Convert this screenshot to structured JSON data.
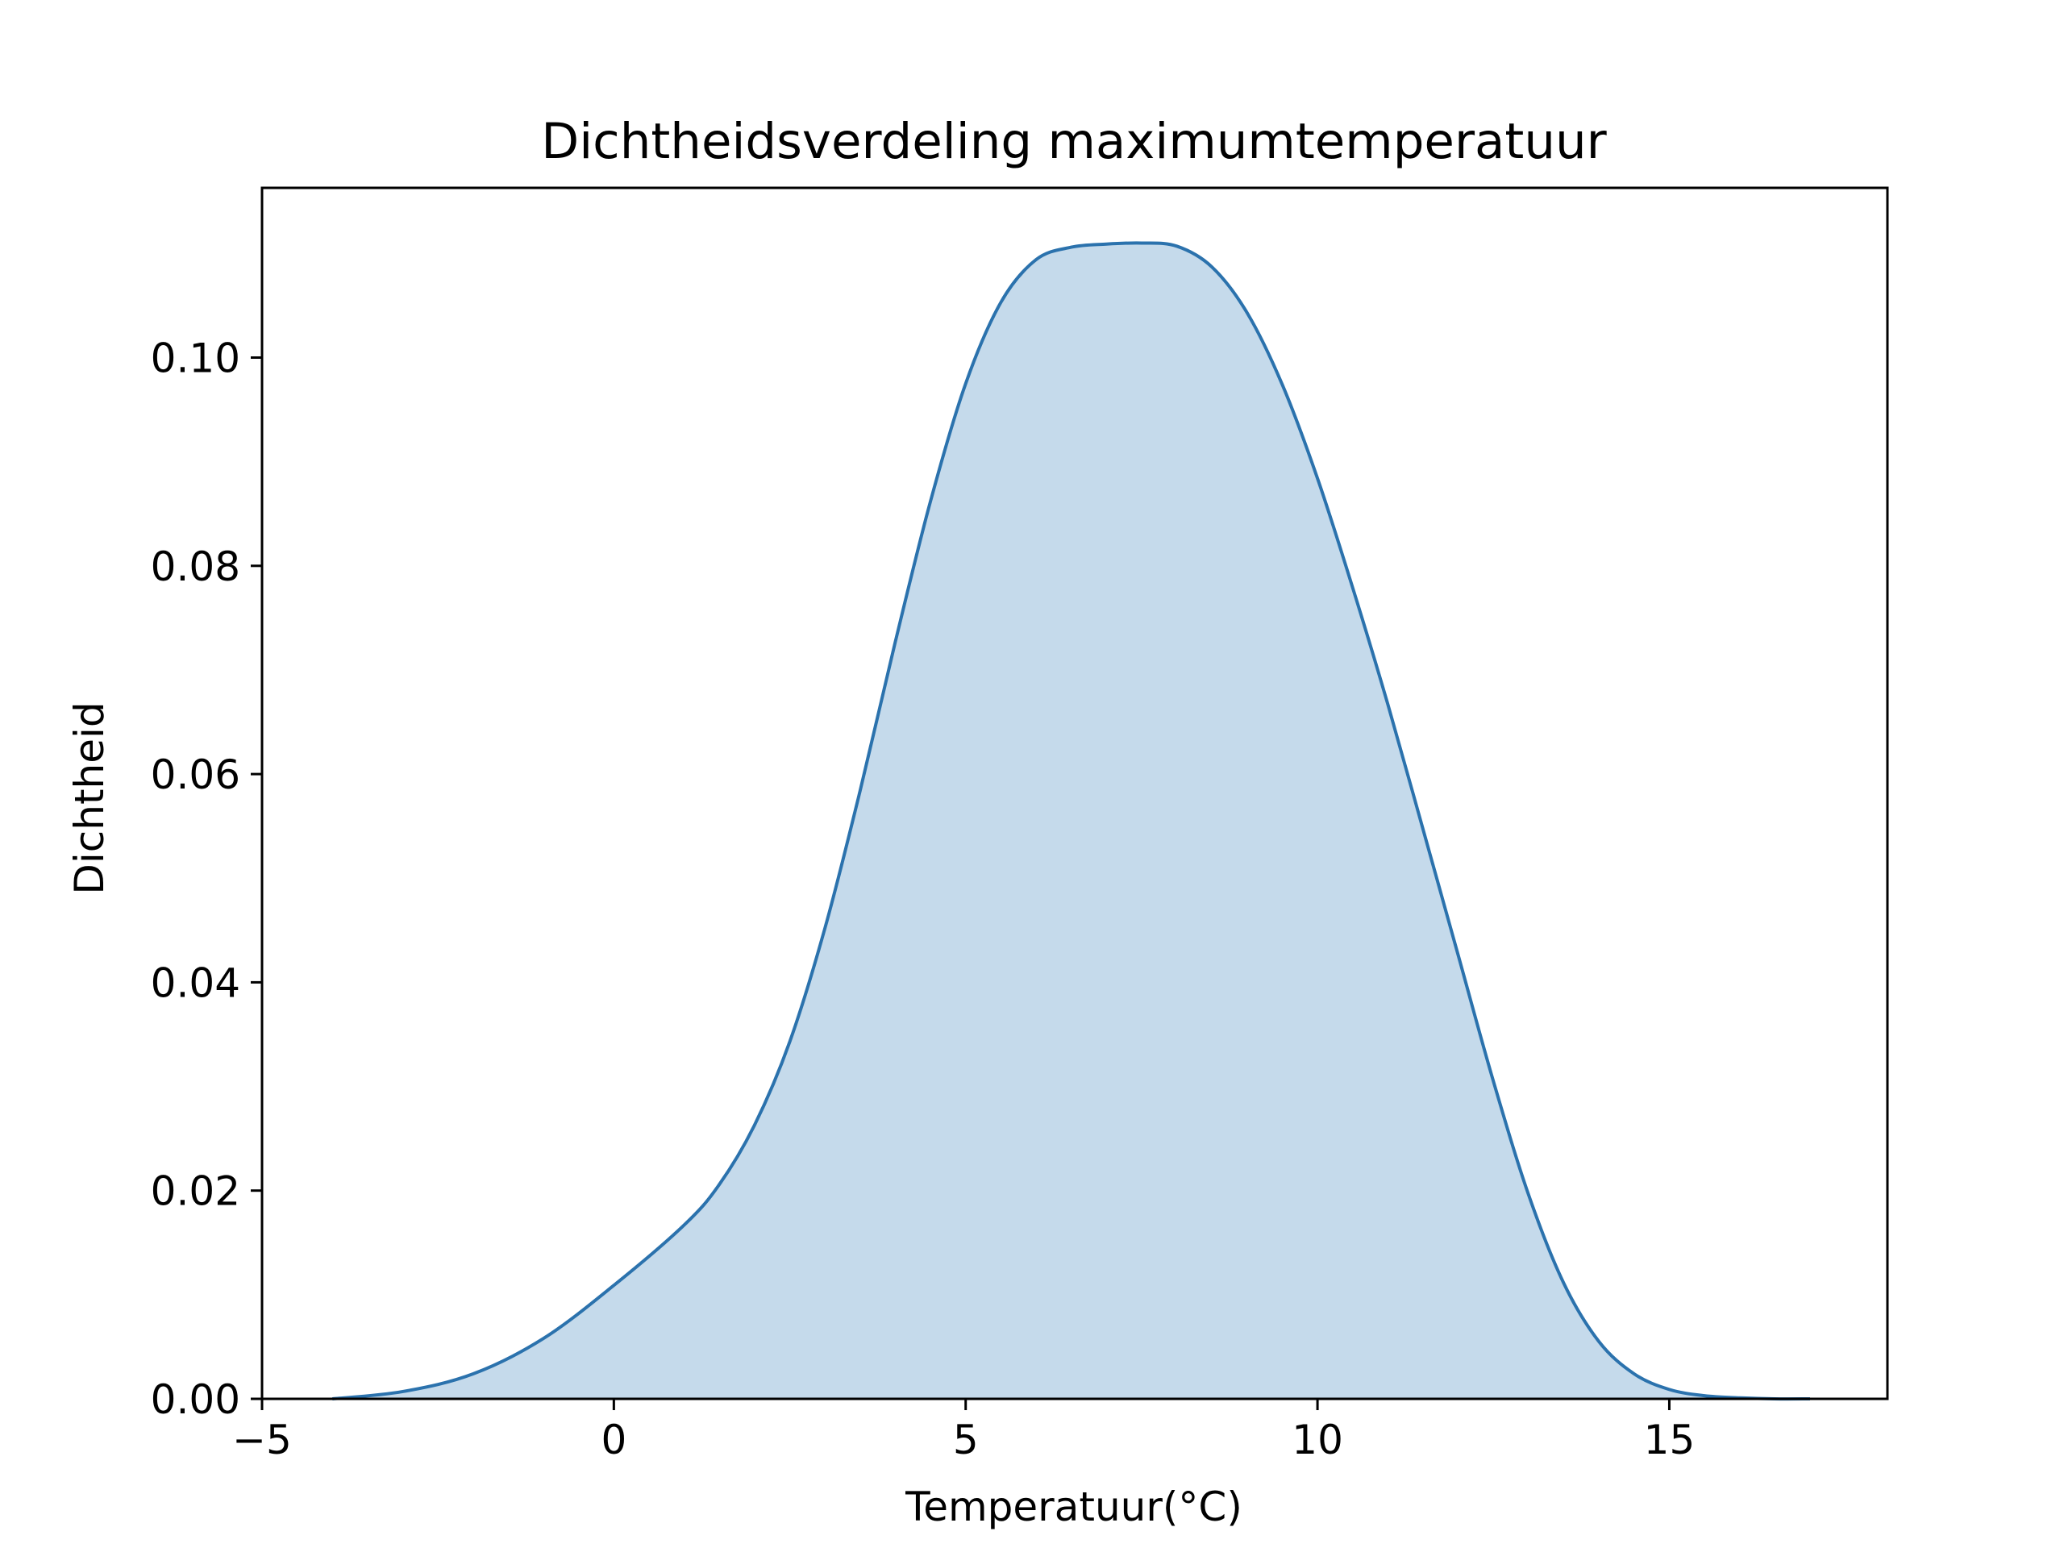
{
  "chart_data": {
    "type": "area",
    "title": "Dichtheidsverdeling maximumtemperatuur",
    "xlabel": "Temperatuur(°C)",
    "ylabel": "Dichtheid",
    "xlim": [
      -5,
      18.1
    ],
    "ylim": [
      0,
      0.1163
    ],
    "xticks": [
      -5,
      0,
      5,
      10,
      15
    ],
    "xtick_labels": [
      "−5",
      "0",
      "5",
      "10",
      "15"
    ],
    "yticks": [
      0,
      0.02,
      0.04,
      0.06,
      0.08,
      0.1
    ],
    "ytick_labels": [
      "0.00",
      "0.02",
      "0.04",
      "0.06",
      "0.08",
      "0.10"
    ],
    "grid": false,
    "line_color": "#2b72ad",
    "fill_color": "#c5daeb",
    "series": [
      {
        "x": [
          -4.0,
          -3.0,
          -2.0,
          -1.0,
          0.0,
          1.0,
          1.5,
          2.0,
          2.5,
          3.0,
          3.5,
          4.0,
          4.5,
          5.0,
          5.5,
          6.0,
          6.5,
          7.0,
          7.5,
          8.0,
          8.5,
          9.0,
          9.5,
          10.0,
          10.5,
          11.0,
          11.5,
          12.0,
          12.5,
          13.0,
          13.5,
          14.0,
          14.5,
          15.0,
          15.5,
          16.0,
          16.5,
          17.0
        ],
        "y": [
          0.0,
          0.0007,
          0.0024,
          0.0058,
          0.0109,
          0.0167,
          0.0206,
          0.0263,
          0.0343,
          0.0452,
          0.0584,
          0.0727,
          0.0862,
          0.0975,
          0.1053,
          0.1094,
          0.1106,
          0.1109,
          0.111,
          0.1107,
          0.1087,
          0.1043,
          0.0974,
          0.0884,
          0.0779,
          0.0667,
          0.0547,
          0.0426,
          0.0305,
          0.0196,
          0.0111,
          0.0055,
          0.0024,
          0.0009,
          0.0003,
          0.0001,
          0.0,
          0.0
        ]
      }
    ]
  }
}
